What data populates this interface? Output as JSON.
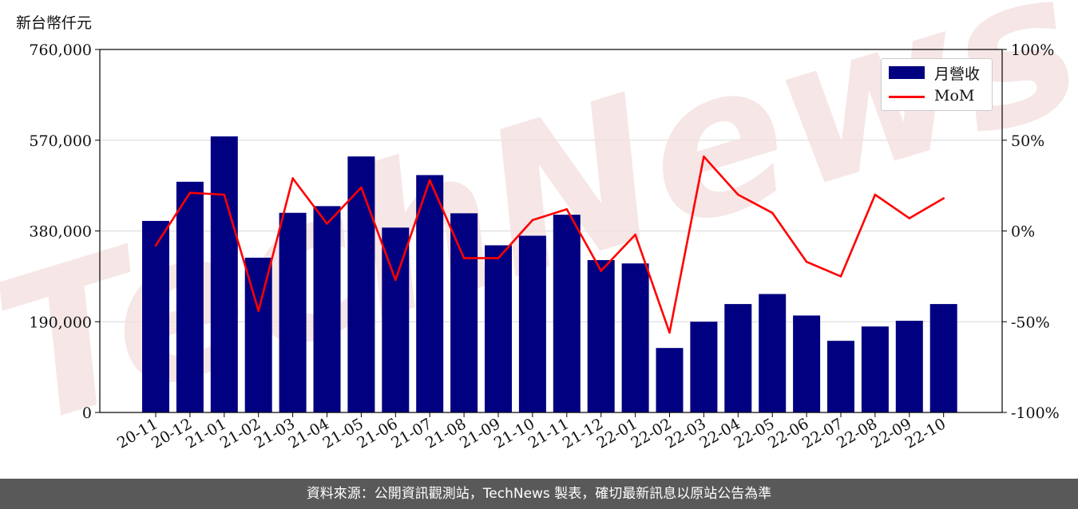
{
  "unit_label": "新台幣仟元",
  "footer": "資料來源：公開資訊觀測站，TechNews 製表，確切最新訊息以原站公告為準",
  "watermark": "TechNews",
  "colors": {
    "bar": "#000080",
    "line": "#ff0000",
    "footer_bg": "#595959",
    "grid": "#d9d9d9"
  },
  "legend": {
    "bar_label": "月營收",
    "line_label": "MoM",
    "position": "top-right"
  },
  "chart_data": {
    "type": "bar",
    "categories": [
      "20-11",
      "20-12",
      "21-01",
      "21-02",
      "21-03",
      "21-04",
      "21-05",
      "21-06",
      "21-07",
      "21-08",
      "21-09",
      "21-10",
      "21-11",
      "21-12",
      "22-01",
      "22-02",
      "22-03",
      "22-04",
      "22-05",
      "22-06",
      "22-07",
      "22-08",
      "22-09",
      "22-10"
    ],
    "series": [
      {
        "name": "月營收",
        "type": "bar",
        "axis": "left",
        "values": [
          401000,
          483000,
          578000,
          324000,
          418000,
          432000,
          536000,
          387000,
          497000,
          417000,
          350000,
          370000,
          414000,
          319000,
          312000,
          135000,
          190000,
          227000,
          248000,
          203000,
          150000,
          180000,
          192000,
          227000
        ]
      },
      {
        "name": "MoM",
        "type": "line",
        "axis": "right",
        "values": [
          -8,
          21,
          20,
          -44,
          29,
          4,
          24,
          -27,
          28,
          -15,
          -15,
          6,
          12,
          -22,
          -2,
          -56,
          41,
          20,
          10,
          -17,
          -25,
          20,
          7,
          18
        ]
      }
    ],
    "y_left": {
      "ylim": [
        0,
        760000
      ],
      "ticks": [
        "0",
        "190,000",
        "380,000",
        "570,000",
        "760,000"
      ]
    },
    "y_right": {
      "ylim": [
        -100,
        100
      ],
      "ticks": [
        "-100%",
        "-50%",
        "0%",
        "50%",
        "100%"
      ]
    },
    "grid": "horizontal"
  }
}
